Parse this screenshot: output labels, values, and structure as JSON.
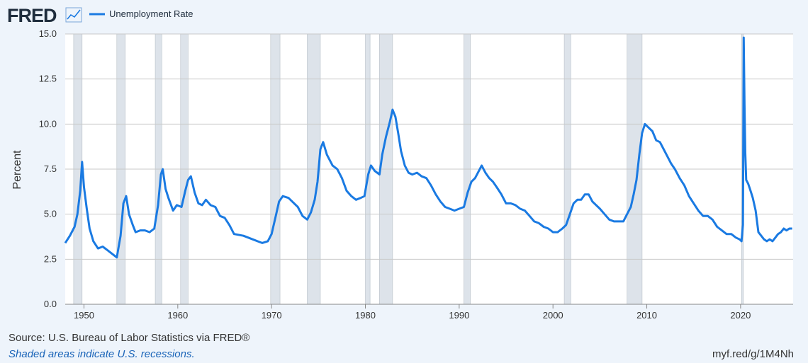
{
  "header": {
    "logo_text": "FRED",
    "logo_icon": "chart-line-icon"
  },
  "footer": {
    "source": "Source: U.S. Bureau of Labor Statistics via FRED®",
    "note": "Shaded areas indicate U.S. recessions.",
    "link": "myf.red/g/1M4Nh"
  },
  "colors": {
    "line": "#1a7ae2",
    "recession": "#dde3ea",
    "plot_bg": "#ffffff",
    "grid": "#c8c8c8"
  },
  "chart_data": {
    "type": "line",
    "title": "",
    "xlabel": "",
    "ylabel": "Percent",
    "xlim": [
      1948,
      2025.6
    ],
    "ylim": [
      0,
      15
    ],
    "y_ticks": [
      "0.0",
      "2.5",
      "5.0",
      "7.5",
      "10.0",
      "12.5",
      "15.0"
    ],
    "x_ticks": [
      1950,
      1960,
      1970,
      1980,
      1990,
      2000,
      2010,
      2020
    ],
    "grid": true,
    "legend_position": "top-left",
    "recessions": [
      [
        1948.9,
        1949.8
      ],
      [
        1953.5,
        1954.4
      ],
      [
        1957.6,
        1958.3
      ],
      [
        1960.3,
        1961.1
      ],
      [
        1969.9,
        1970.9
      ],
      [
        1973.8,
        1975.2
      ],
      [
        1980.0,
        1980.5
      ],
      [
        1981.5,
        1982.9
      ],
      [
        1990.5,
        1991.2
      ],
      [
        2001.2,
        2001.9
      ],
      [
        2007.9,
        2009.5
      ],
      [
        2020.1,
        2020.3
      ]
    ],
    "series": [
      {
        "name": "Unemployment Rate",
        "x": [
          1948.0,
          1948.5,
          1949.0,
          1949.3,
          1949.6,
          1949.8,
          1950.0,
          1950.3,
          1950.6,
          1951.0,
          1951.5,
          1952.0,
          1952.5,
          1953.0,
          1953.5,
          1953.9,
          1954.2,
          1954.5,
          1954.8,
          1955.2,
          1955.5,
          1956.0,
          1956.5,
          1957.0,
          1957.5,
          1957.9,
          1958.2,
          1958.4,
          1958.7,
          1959.0,
          1959.5,
          1959.9,
          1960.4,
          1960.8,
          1961.1,
          1961.4,
          1961.8,
          1962.2,
          1962.6,
          1963.0,
          1963.5,
          1964.0,
          1964.5,
          1965.0,
          1965.5,
          1966.0,
          1967.0,
          1968.0,
          1968.5,
          1969.0,
          1969.6,
          1970.0,
          1970.4,
          1970.8,
          1971.2,
          1971.8,
          1972.2,
          1972.8,
          1973.3,
          1973.8,
          1974.2,
          1974.6,
          1974.9,
          1975.2,
          1975.5,
          1975.9,
          1976.5,
          1977.0,
          1977.5,
          1978.0,
          1978.5,
          1979.0,
          1979.5,
          1979.9,
          1980.3,
          1980.6,
          1981.0,
          1981.5,
          1981.8,
          1982.2,
          1982.6,
          1982.9,
          1983.2,
          1983.5,
          1983.8,
          1984.2,
          1984.6,
          1985.0,
          1985.5,
          1986.0,
          1986.5,
          1987.0,
          1987.5,
          1988.0,
          1988.5,
          1989.0,
          1989.5,
          1990.0,
          1990.5,
          1990.9,
          1991.3,
          1991.7,
          1992.0,
          1992.4,
          1992.8,
          1993.2,
          1993.6,
          1994.0,
          1994.5,
          1995.0,
          1995.5,
          1996.0,
          1996.5,
          1997.0,
          1997.5,
          1998.0,
          1998.5,
          1999.0,
          1999.5,
          2000.0,
          2000.5,
          2001.0,
          2001.4,
          2001.8,
          2002.2,
          2002.6,
          2003.0,
          2003.4,
          2003.8,
          2004.2,
          2004.6,
          2005.0,
          2005.5,
          2006.0,
          2006.5,
          2007.0,
          2007.5,
          2007.9,
          2008.3,
          2008.6,
          2008.9,
          2009.2,
          2009.5,
          2009.8,
          2010.2,
          2010.6,
          2011.0,
          2011.4,
          2011.8,
          2012.2,
          2012.6,
          2013.0,
          2013.5,
          2014.0,
          2014.5,
          2015.0,
          2015.5,
          2016.0,
          2016.5,
          2017.0,
          2017.5,
          2018.0,
          2018.5,
          2019.0,
          2019.5,
          2019.9,
          2020.1,
          2020.25,
          2020.33,
          2020.42,
          2020.5,
          2020.6,
          2020.8,
          2021.0,
          2021.3,
          2021.6,
          2021.9,
          2022.2,
          2022.5,
          2022.8,
          2023.1,
          2023.4,
          2023.7,
          2024.0,
          2024.3,
          2024.6,
          2024.9,
          2025.2,
          2025.5
        ],
        "y": [
          3.4,
          3.8,
          4.3,
          5.0,
          6.3,
          7.9,
          6.5,
          5.3,
          4.2,
          3.5,
          3.1,
          3.2,
          3.0,
          2.8,
          2.6,
          3.8,
          5.6,
          6.0,
          5.0,
          4.4,
          4.0,
          4.1,
          4.1,
          4.0,
          4.2,
          5.5,
          7.2,
          7.5,
          6.4,
          5.9,
          5.2,
          5.5,
          5.4,
          6.3,
          6.9,
          7.1,
          6.2,
          5.6,
          5.5,
          5.8,
          5.5,
          5.4,
          4.9,
          4.8,
          4.4,
          3.9,
          3.8,
          3.6,
          3.5,
          3.4,
          3.5,
          3.9,
          4.8,
          5.7,
          6.0,
          5.9,
          5.7,
          5.4,
          4.9,
          4.7,
          5.1,
          5.8,
          6.8,
          8.6,
          9.0,
          8.3,
          7.7,
          7.5,
          7.0,
          6.3,
          6.0,
          5.8,
          5.9,
          6.0,
          7.2,
          7.7,
          7.4,
          7.2,
          8.3,
          9.3,
          10.1,
          10.8,
          10.4,
          9.5,
          8.5,
          7.7,
          7.3,
          7.2,
          7.3,
          7.1,
          7.0,
          6.6,
          6.1,
          5.7,
          5.4,
          5.3,
          5.2,
          5.3,
          5.4,
          6.2,
          6.8,
          7.0,
          7.3,
          7.7,
          7.3,
          7.0,
          6.8,
          6.5,
          6.1,
          5.6,
          5.6,
          5.5,
          5.3,
          5.2,
          4.9,
          4.6,
          4.5,
          4.3,
          4.2,
          4.0,
          4.0,
          4.2,
          4.4,
          5.0,
          5.6,
          5.8,
          5.8,
          6.1,
          6.1,
          5.7,
          5.5,
          5.3,
          5.0,
          4.7,
          4.6,
          4.6,
          4.6,
          5.0,
          5.4,
          6.1,
          6.9,
          8.3,
          9.5,
          10.0,
          9.8,
          9.6,
          9.1,
          9.0,
          8.6,
          8.2,
          7.8,
          7.5,
          7.0,
          6.6,
          6.0,
          5.6,
          5.2,
          4.9,
          4.9,
          4.7,
          4.3,
          4.1,
          3.9,
          3.9,
          3.7,
          3.6,
          3.5,
          4.4,
          14.8,
          11.1,
          8.4,
          6.9,
          6.7,
          6.4,
          5.9,
          5.2,
          4.0,
          3.8,
          3.6,
          3.5,
          3.6,
          3.5,
          3.7,
          3.9,
          4.0,
          4.2,
          4.1,
          4.2,
          4.2
        ]
      }
    ]
  }
}
